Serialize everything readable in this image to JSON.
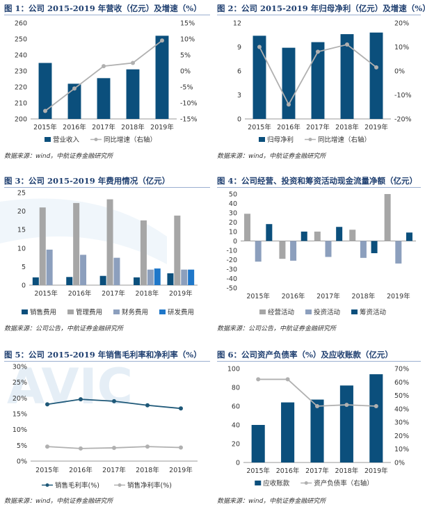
{
  "colors": {
    "navy": "#0b4f7c",
    "gray": "#a6a6a6",
    "gray2": "#8c9fbd",
    "blue": "#1f77c9",
    "title": "#1f3f70",
    "line_navy": "#1e5878",
    "line_gray": "#b0b0b0"
  },
  "panels": [
    {
      "id": "p1",
      "title": "图 1：公司 2015-2019 年营收（亿元）及增速（%）",
      "source": "数据来源：wind，中航证券金融研究所"
    },
    {
      "id": "p2",
      "title": "图 2：公司 2015-2019 年归母净利（亿元）及增速（%）",
      "source": "数据来源：wind，中航证券金融研究所"
    },
    {
      "id": "p3",
      "title": "图 3：公司 2015-2019 年费用情况（亿元）",
      "source": "数据来源：公司公告，中航证券金融研究所"
    },
    {
      "id": "p4",
      "title": "图 4：公司经营、投资和筹资活动现金流量净额（亿元）",
      "source": "数据来源：公司公告，中航证券金融研究所"
    },
    {
      "id": "p5",
      "title": "图 5：公司 2015-2019 年销售毛利率和净利率（%）",
      "source": "数据来源：wind，中航证券金融研究所"
    },
    {
      "id": "p6",
      "title": "图 6：公司资产负债率（%）及应收账款（亿元）",
      "source": "数据来源：wind，中航证券金融研究所"
    }
  ],
  "chart_data": [
    {
      "id": "c1",
      "type": "bar",
      "categories": [
        "2015年",
        "2016年",
        "2017年",
        "2018年",
        "2019年"
      ],
      "series": [
        {
          "name": "营业收入",
          "type": "bar",
          "axis": "left",
          "values": [
            235,
            222,
            225.5,
            231,
            252
          ]
        },
        {
          "name": "同比增速（右轴）",
          "type": "line",
          "axis": "right",
          "values": [
            -12.5,
            -5.5,
            1.5,
            2.5,
            9.5
          ]
        }
      ],
      "ylim": [
        200,
        260
      ],
      "yticks": [
        "260",
        "250",
        "240",
        "230",
        "220",
        "210",
        "200"
      ],
      "y2lim": [
        -15,
        15
      ],
      "y2ticks": [
        "15%",
        "10%",
        "5%",
        "0%",
        "-5%",
        "-10%",
        "-15%"
      ]
    },
    {
      "id": "c2",
      "type": "bar",
      "categories": [
        "2015年",
        "2016年",
        "2017年",
        "2018年",
        "2019年"
      ],
      "series": [
        {
          "name": "归母净利",
          "type": "bar",
          "axis": "left",
          "values": [
            10.4,
            8.9,
            9.6,
            10.6,
            10.8
          ]
        },
        {
          "name": "同比增速（右轴）",
          "type": "line",
          "axis": "right",
          "values": [
            10,
            -14,
            8,
            11,
            1.5
          ]
        }
      ],
      "ylim": [
        0,
        12
      ],
      "yticks": [
        "12",
        "9",
        "6",
        "3",
        "0"
      ],
      "y2lim": [
        -20,
        20
      ],
      "y2ticks": [
        "20%",
        "10%",
        "0%",
        "-10%",
        "-20%"
      ]
    },
    {
      "id": "c3",
      "type": "bar",
      "categories": [
        "2015年",
        "2016年",
        "2017年",
        "2018年",
        "2019年"
      ],
      "series": [
        {
          "name": "销售费用",
          "values": [
            2.1,
            2.2,
            2.5,
            2.1,
            3.2
          ]
        },
        {
          "name": "管理费用",
          "values": [
            21,
            22.2,
            23.2,
            17.5,
            18.8
          ]
        },
        {
          "name": "财务费用",
          "values": [
            9.6,
            8.2,
            7.4,
            4.2,
            4.2
          ]
        },
        {
          "name": "研发费用",
          "values": [
            0,
            0,
            0,
            4.5,
            4.2
          ]
        }
      ],
      "ylim": [
        0,
        25
      ],
      "yticks": [
        "25",
        "20",
        "15",
        "10",
        "5",
        "0"
      ]
    },
    {
      "id": "c4",
      "type": "bar",
      "categories": [
        "2015年",
        "2016年",
        "2017年",
        "2018年",
        "2019年"
      ],
      "series": [
        {
          "name": "经营活动",
          "values": [
            29,
            -19,
            10,
            12,
            50
          ]
        },
        {
          "name": "投资活动",
          "values": [
            -22,
            -21,
            -17,
            -18,
            -24
          ]
        },
        {
          "name": "筹资活动",
          "values": [
            18,
            10,
            15,
            -13,
            9
          ]
        }
      ],
      "ylim": [
        -50,
        50
      ],
      "yticks": [
        "50",
        "40",
        "30",
        "20",
        "10",
        "0",
        "-10",
        "-20",
        "-30",
        "-40",
        "-50"
      ]
    },
    {
      "id": "c5",
      "type": "line",
      "categories": [
        "2015年",
        "2016年",
        "2017年",
        "2018年",
        "2019年"
      ],
      "series": [
        {
          "name": "销售毛利率(%)",
          "values": [
            18,
            19.6,
            19,
            17.7,
            16.7
          ]
        },
        {
          "name": "销售净利率(%)",
          "values": [
            4.6,
            4,
            4.2,
            4.6,
            4.3
          ]
        }
      ],
      "ylim": [
        0,
        30
      ],
      "yticks": [
        "30%",
        "25%",
        "20%",
        "15%",
        "10%",
        "5%",
        "0%"
      ]
    },
    {
      "id": "c6",
      "type": "bar",
      "categories": [
        "2015年",
        "2016年",
        "2017年",
        "2018年",
        "2019年"
      ],
      "series": [
        {
          "name": "应收账款",
          "type": "bar",
          "axis": "left",
          "values": [
            40,
            64,
            67,
            82,
            94
          ]
        },
        {
          "name": "资产负债率（右轴）",
          "type": "line",
          "axis": "right",
          "values": [
            62,
            62,
            42,
            43,
            42
          ]
        }
      ],
      "ylim": [
        0,
        100
      ],
      "yticks": [
        "100",
        "80",
        "60",
        "40",
        "20",
        "0"
      ],
      "y2lim": [
        0,
        70
      ],
      "y2ticks": [
        "70%",
        "60%",
        "50%",
        "40%",
        "30%",
        "20%",
        "10%",
        "0%"
      ]
    }
  ]
}
